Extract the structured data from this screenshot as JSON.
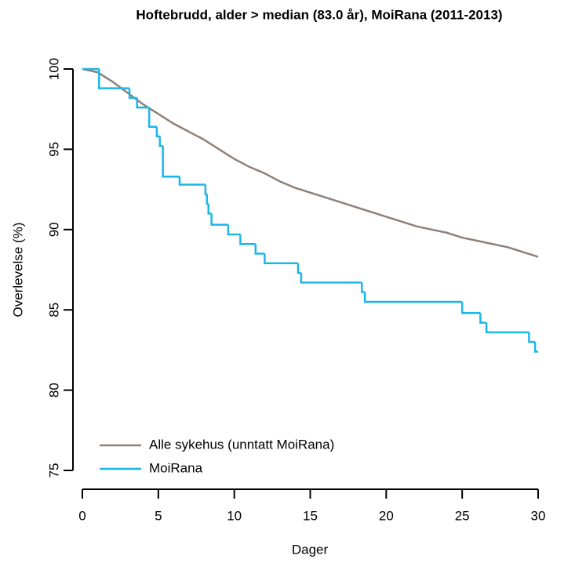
{
  "chart_data": {
    "type": "line",
    "title": "Hoftebrudd, alder > median (83.0 år), MoiRana (2011-2013)",
    "xlabel": "Dager",
    "ylabel": "Overlevelse (%)",
    "xlim": [
      0,
      30
    ],
    "xticks": [
      0,
      5,
      10,
      15,
      20,
      25,
      30
    ],
    "ylim": [
      75,
      100
    ],
    "yticks": [
      75,
      80,
      85,
      90,
      95,
      100
    ],
    "legend": "bottom-left",
    "series": [
      {
        "name": "Alle sykehus (unntatt MoiRana)",
        "color": "#8f8178",
        "step": false,
        "x": [
          0,
          1,
          2,
          3,
          4,
          5,
          6,
          7,
          8,
          9,
          10,
          11,
          12,
          13,
          14,
          15,
          16,
          17,
          18,
          19,
          20,
          21,
          22,
          23,
          24,
          25,
          26,
          27,
          28,
          29,
          30
        ],
        "values": [
          100,
          99.8,
          99.2,
          98.5,
          97.8,
          97.2,
          96.6,
          96.1,
          95.6,
          95.0,
          94.4,
          93.9,
          93.5,
          93.0,
          92.6,
          92.3,
          92.0,
          91.7,
          91.4,
          91.1,
          90.8,
          90.5,
          90.2,
          90.0,
          89.8,
          89.5,
          89.3,
          89.1,
          88.9,
          88.6,
          88.3
        ]
      },
      {
        "name": "MoiRana",
        "color": "#1cb5ea",
        "step": true,
        "x": [
          0,
          1.1,
          3.1,
          3.6,
          4.4,
          4.9,
          5.1,
          5.3,
          6.4,
          8.1,
          8.2,
          8.3,
          8.5,
          9.6,
          10.4,
          11.4,
          12.0,
          14.2,
          14.4,
          18.4,
          18.6,
          25.0,
          26.2,
          26.6,
          29.4,
          29.8,
          30
        ],
        "values": [
          100,
          98.8,
          98.2,
          97.6,
          96.4,
          95.8,
          95.2,
          93.3,
          92.8,
          92.2,
          91.6,
          91.0,
          90.3,
          89.7,
          89.1,
          88.5,
          87.9,
          87.3,
          86.7,
          86.1,
          85.5,
          84.8,
          84.2,
          83.6,
          83.0,
          82.4,
          82.4
        ]
      }
    ]
  }
}
